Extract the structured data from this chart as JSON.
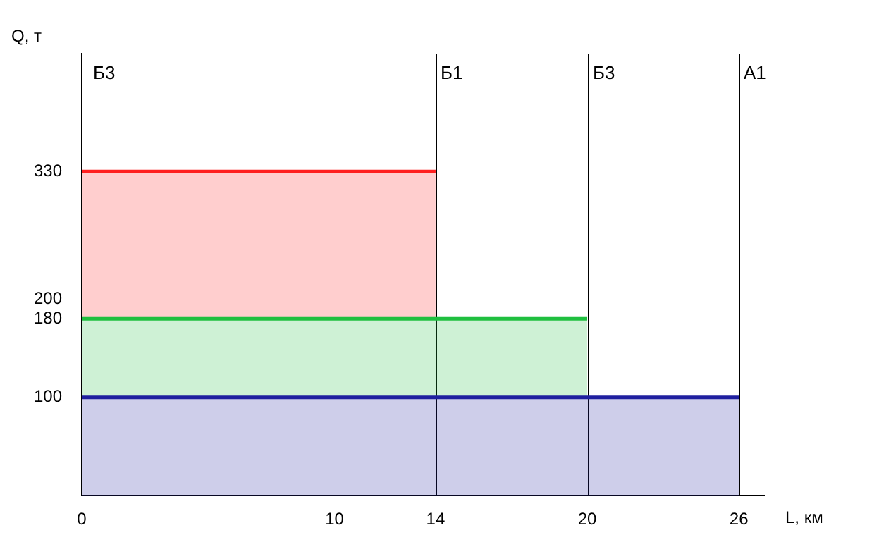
{
  "chart_data": {
    "type": "area",
    "stacked": true,
    "xlabel": "L, км",
    "ylabel": "Q, т",
    "xlim": [
      0,
      27
    ],
    "xticks": [
      0,
      10,
      14,
      20,
      26
    ],
    "ylim": [
      0,
      450
    ],
    "yticks": [
      100,
      180,
      200,
      330
    ],
    "series": [
      {
        "color": "#1f1f9f",
        "x": [
          0,
          26
        ],
        "values": [
          100,
          100
        ]
      },
      {
        "color": "#1fbf3f",
        "x": [
          0,
          20
        ],
        "values": [
          80,
          80
        ]
      },
      {
        "color": "#ff1f1f",
        "x": [
          0,
          14
        ],
        "values": [
          150,
          150
        ]
      }
    ],
    "ref_lines": [
      {
        "axis": "x",
        "value": 14,
        "label": "Б1",
        "color": "#000000"
      },
      {
        "axis": "x",
        "value": 20,
        "label": "Б3",
        "color": "#000000"
      },
      {
        "axis": "x",
        "value": 26,
        "label": "А1",
        "color": "#000000"
      }
    ],
    "annotations": [
      "Б3"
    ],
    "grid": false,
    "legend": false,
    "marker": "none",
    "line_style": "solid"
  }
}
